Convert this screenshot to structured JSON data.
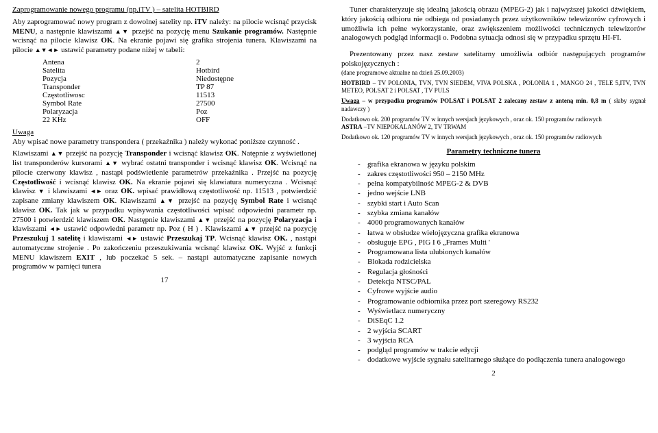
{
  "left": {
    "heading": "Zaprogramowanie nowego programu (np.iTV ) – satelita HOTBIRD",
    "p1a": "Aby zaprogramować nowy program z dowolnej satelity np. ",
    "p1b": "iTV",
    "p1c": " należy: na pilocie wcisnąć przycisk ",
    "p1d": "MENU",
    "p1e": ", a następnie klawiszami ",
    "p1f": "▲▼",
    "p1g": " przejść na pozycję menu ",
    "p1h": "Szukanie programów.",
    "p1i": " Następnie wcisnąć na pilocie klawisz ",
    "p1j": "OK",
    "p1k": ". Na ekranie pojawi się grafika strojenia tunera. Klawiszami na pilocie ",
    "p1l": "▲▼◄►",
    "p1m": " ustawić parametry podane niżej w tabeli:",
    "table": {
      "rows": [
        [
          "Antena",
          "2"
        ],
        [
          "Satelita",
          "Hotbird"
        ],
        [
          "Pozycja",
          "Niedostępne"
        ],
        [
          "Transponder",
          "TP 87"
        ],
        [
          "Częstotliwosc",
          "11513"
        ],
        [
          "Symbol Rate",
          "27500"
        ],
        [
          "Polaryzacja",
          "Poz"
        ],
        [
          "22 KHz",
          "OFF"
        ]
      ]
    },
    "uwaga_label": "Uwaga",
    "p2": "Aby wpisać nowe parametry transpondera ( przekaźnika ) należy wykonać poniższe czynność .",
    "p3_parts": [
      {
        "t": "Klawiszami ",
        "b": false
      },
      {
        "t": "▲▼",
        "a": true
      },
      {
        "t": " przejść na pozycję ",
        "b": false
      },
      {
        "t": "Transponder",
        "b": true
      },
      {
        "t": " i wcisnąć klawisz ",
        "b": false
      },
      {
        "t": "OK",
        "b": true
      },
      {
        "t": ". Natępnie z wyświetlonej list transponderów kursorami ",
        "b": false
      },
      {
        "t": "▲▼",
        "a": true
      },
      {
        "t": " wybrać ostatni transponder i wcisnąć klawisz ",
        "b": false
      },
      {
        "t": "OK",
        "b": true
      },
      {
        "t": ". Wcisnąć na pilocie czerwony klawisz , nastąpi podświetlenie parametrów przekaźnika . Przejść na pozycję ",
        "b": false
      },
      {
        "t": "Częstotliwość",
        "b": true
      },
      {
        "t": " i wcisnąć klawisz ",
        "b": false
      },
      {
        "t": "OK.",
        "b": true
      },
      {
        "t": " Na ekranie pojawi się klawiatura numeryczna . Wcisnąć klawisz ",
        "b": false
      },
      {
        "t": "▼",
        "a": true
      },
      {
        "t": " i klawiszami ",
        "b": false
      },
      {
        "t": "◄►",
        "a": true
      },
      {
        "t": " oraz ",
        "b": false
      },
      {
        "t": "OK.",
        "b": true
      },
      {
        "t": " wpisać prawidłową częstotliwość np. 11513 , potwierdzić zapisane zmiany klawiszem ",
        "b": false
      },
      {
        "t": "OK",
        "b": true
      },
      {
        "t": ". Klawiszami ",
        "b": false
      },
      {
        "t": "▲▼",
        "a": true
      },
      {
        "t": " przejść na pozycję ",
        "b": false
      },
      {
        "t": "Symbol Rate",
        "b": true
      },
      {
        "t": " i wcisnąć klawisz ",
        "b": false
      },
      {
        "t": "OK.",
        "b": true
      },
      {
        "t": "  Tak jak w przypadku wpisywania częstotliwości wpisać odpowiedni parametr np. 27500 i potwierdzić klawiszem ",
        "b": false
      },
      {
        "t": "OK",
        "b": true
      },
      {
        "t": ". Następnie klawiszami ",
        "b": false
      },
      {
        "t": "▲▼",
        "a": true
      },
      {
        "t": " przejść na pozycję ",
        "b": false
      },
      {
        "t": "Polaryzacja",
        "b": true
      },
      {
        "t": " i klawiszami ",
        "b": false
      },
      {
        "t": "◄►",
        "a": true
      },
      {
        "t": " ustawić odpowiedni parametr np. Poz ( H ) . Klawiszami ",
        "b": false
      },
      {
        "t": "▲▼",
        "a": true
      },
      {
        "t": " przejść na pozycję ",
        "b": false
      },
      {
        "t": "Przeszukuj 1 satelitę",
        "b": true
      },
      {
        "t": " i klawiszami ",
        "b": false
      },
      {
        "t": "◄►",
        "a": true
      },
      {
        "t": " ustawić ",
        "b": false
      },
      {
        "t": "Przeszukaj TP",
        "b": true
      },
      {
        "t": ". Wcisnąć klawisz ",
        "b": false
      },
      {
        "t": "OK.",
        "b": true
      },
      {
        "t": " , nastąpi automatyczne strojenie . Po zakończeniu przeszukiwania wcisnąć klawisz ",
        "b": false
      },
      {
        "t": "OK.",
        "b": true
      },
      {
        "t": " Wyjść z funkcji MENU klawiszem ",
        "b": false
      },
      {
        "t": "EXIT",
        "b": true
      },
      {
        "t": " , lub poczekać 5 sek.  – nastąpi automatyczne zapisanie nowych programów w pamięci tunera",
        "b": false
      }
    ],
    "pagenum": "17"
  },
  "right": {
    "p1": "Tuner charakteryzuje się idealną jakością obrazu (MPEG-2) jak i najwyższej jakości dźwiękiem, który jakością odbioru nie odbiega od posiadanych przez użytkowników telewizorów cyfrowych i umożliwia ich pełne wykorzystanie, oraz zwiększeniem możliwości technicznych telewizorów analogowych podgląd informacji o. Podobna sytuacja odnosi się w przypadku sprzętu HI-FI.",
    "p2a": "Prezentowany przez nasz zestaw satelitarny umożliwia odbiór następujących programów polskojęzycznych :",
    "p2b": "(dane programowe aktualne na dzień 25.09.2003)",
    "p3a": "HOTBIRD",
    "p3b": " – TV POLONIA, TVN, TVN SIEDEM, VIVA POLSKA , POLONIA 1 , MANGO 24 , TELE 5,ITV, TVN METEO, POLSAT 2 i POLSAT , TV PULS",
    "p4a": "Uwaga",
    "p4b_pre": " – ",
    "p4b": "w przypadku programów POLSAT i POLSAT 2 zalecany zestaw z anteną min. 0,8 m",
    "p4c": " ( słaby sygnał nadawczy )",
    "p5a": "Dodatkowo ok. 200 programów TV w innych wersjach językowych , oraz ok. 150 programów radiowych",
    "p5b": "ASTRA",
    "p5c": "   –TV NIEPOKALANÓW 2, TV TRWAM",
    "p6": "Dodatkowo ok. 120 programów TV w innych wersjach językowych , oraz ok. 150 programów radiowych",
    "spec_title": "Parametry techniczne tunera",
    "specs": [
      "grafika ekranowa w języku polskim",
      "zakres częstotliwości 950 – 2150 MHz",
      "pełna kompatybilność MPEG-2 & DVB",
      "jedno wejście LNB",
      "szybki start i Auto Scan",
      "szybka zmiana kanałów",
      "4000 programowanych kanałów",
      "łatwa w obsłudze wielojęzyczna grafika ekranowa",
      "obsługuje EPG , PIG I 6 „Frames Multi '",
      "Programowana lista ulubionych kanałów",
      "Blokada rodzicielska",
      "Regulacja głośności",
      "Detekcja NTSC/PAL",
      "Cyfrowe wyjście audio",
      "Programowanie odbiornika przez port szeregowy RS232",
      "Wyświetlacz numeryczny",
      "DiSEqC  1.2",
      "2 wyjścia SCART",
      "3 wyjścia RCA",
      "podgląd programów w trakcie edycji",
      "dodatkowe wyjście sygnału satelitarnego służące do podłączenia tunera analogowego"
    ],
    "pagenum": "2"
  }
}
